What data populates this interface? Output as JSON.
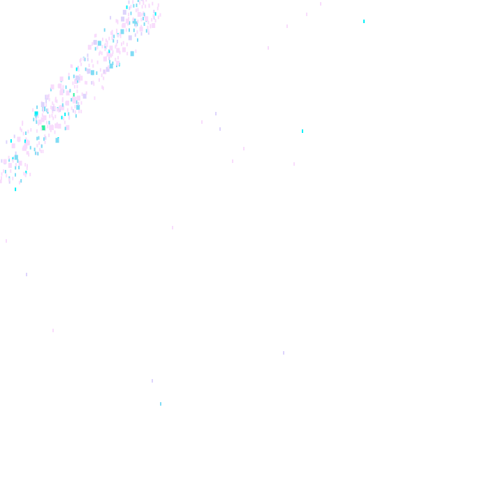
{
  "background": "#ffffff",
  "colors": {
    "pink": "#f8dcfc",
    "lavender": "#ddd4fc",
    "sky": "#80dcf4",
    "cyan": "#00f0f8",
    "green": "#30f0a0"
  }
}
